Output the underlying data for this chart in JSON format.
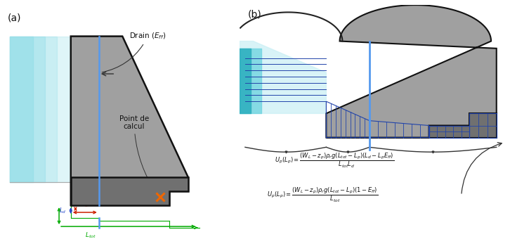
{
  "fig_width": 7.26,
  "fig_height": 3.57,
  "bg_color": "#ffffff",
  "label_a": "(a)",
  "label_b": "(b)",
  "drain_label_top": "Drain (E",
  "drain_label_ff": "ff",
  "drain_label_end": ")",
  "point_label": "Point de\ncalcul",
  "dam_gray_light": "#a0a0a0",
  "dam_gray_mid": "#888888",
  "dam_gray_dark": "#707070",
  "water_light": "#c8eff5",
  "water_mid": "#70d4e0",
  "water_dark": "#30b0c0",
  "drain_blue": "#5599ee",
  "hatch_blue": "#2244aa",
  "hatch_fill": "#8899cc",
  "green_color": "#00aa00",
  "red_color": "#cc2200",
  "blue_dim": "#2244cc",
  "orange_color": "#ee6600",
  "arrow_dark": "#333333",
  "tail_water": "#aaaaaa"
}
